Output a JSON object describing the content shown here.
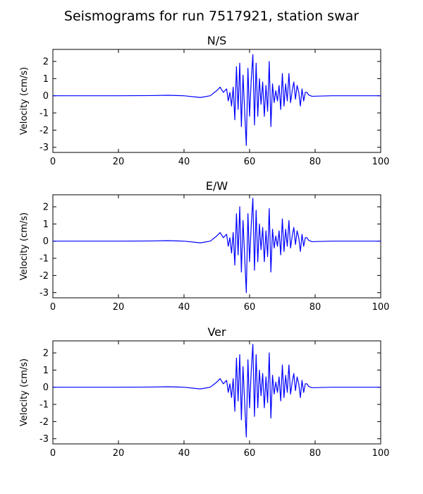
{
  "chart_data": {
    "type": "line",
    "title": "Seismograms for run 7517921, station swar",
    "panels": [
      {
        "title": "N/S",
        "ylabel": "Velocity (cm/s)",
        "xlabel": "",
        "xlim": [
          0,
          100
        ],
        "ylim": [
          -3.3,
          2.7
        ],
        "xticks": [
          "0",
          "20",
          "40",
          "60",
          "80",
          "100"
        ],
        "yticks": [
          "2",
          "1",
          "0",
          "-1",
          "-2",
          "-3"
        ],
        "x": [
          0,
          10,
          20,
          30,
          35,
          40,
          45,
          48,
          50,
          51,
          52,
          53,
          53.5,
          54,
          54.5,
          55,
          55.5,
          56,
          56.5,
          57,
          57.5,
          58,
          58.5,
          59,
          59.5,
          60,
          60.5,
          61,
          61.5,
          62,
          62.5,
          63,
          63.5,
          64,
          64.5,
          65,
          65.5,
          66,
          66.5,
          67,
          67.5,
          68,
          68.5,
          69,
          69.5,
          70,
          70.5,
          71,
          71.5,
          72,
          72.5,
          73,
          73.5,
          74,
          74.5,
          75,
          75.5,
          76,
          76.5,
          77,
          77.5,
          78,
          79,
          85,
          100
        ],
        "y": [
          0,
          0,
          0,
          0.01,
          0.03,
          0,
          -0.1,
          0,
          0.3,
          0.5,
          0.2,
          0.4,
          -0.3,
          0.2,
          -0.6,
          0.5,
          -1.4,
          1.7,
          -0.8,
          1.9,
          -1.8,
          1.2,
          -0.9,
          -2.9,
          1.6,
          -1.2,
          0.9,
          2.4,
          -1.7,
          1.9,
          -1.2,
          1.0,
          -0.5,
          0.8,
          -1.2,
          0.6,
          -0.9,
          2.0,
          -1.8,
          0.7,
          -0.4,
          0.3,
          -0.3,
          0.6,
          -0.8,
          1.3,
          -0.6,
          0.7,
          -0.3,
          1.3,
          -0.4,
          0.3,
          0.8,
          -0.2,
          0.6,
          0.2,
          -0.6,
          0.4,
          -0.3,
          0.2,
          0.2,
          0.05,
          -0.03,
          0,
          0
        ]
      },
      {
        "title": "E/W",
        "ylabel": "Velocity (cm/s)",
        "xlabel": "",
        "xlim": [
          0,
          100
        ],
        "ylim": [
          -3.3,
          2.7
        ],
        "xticks": [
          "0",
          "20",
          "40",
          "60",
          "80",
          "100"
        ],
        "yticks": [
          "2",
          "1",
          "0",
          "-1",
          "-2",
          "-3"
        ],
        "x": [
          0,
          10,
          20,
          30,
          35,
          40,
          45,
          48,
          50,
          51,
          52,
          53,
          53.5,
          54,
          54.5,
          55,
          55.5,
          56,
          56.5,
          57,
          57.5,
          58,
          58.5,
          59,
          59.5,
          60,
          60.5,
          61,
          61.5,
          62,
          62.5,
          63,
          63.5,
          64,
          64.5,
          65,
          65.5,
          66,
          66.5,
          67,
          67.5,
          68,
          68.5,
          69,
          69.5,
          70,
          70.5,
          71,
          71.5,
          72,
          72.5,
          73,
          73.5,
          74,
          74.5,
          75,
          75.5,
          76,
          76.5,
          77,
          77.5,
          78,
          79,
          85,
          100
        ],
        "y": [
          0,
          0,
          0,
          0.01,
          0.03,
          0,
          -0.1,
          0,
          0.3,
          0.5,
          0.2,
          0.4,
          -0.3,
          0.2,
          -0.7,
          0.5,
          -1.4,
          1.6,
          -0.8,
          2.0,
          -1.8,
          1.2,
          -0.9,
          -3.0,
          1.6,
          -1.2,
          0.9,
          2.5,
          -1.7,
          1.8,
          -1.2,
          1.0,
          -0.5,
          0.8,
          -1.2,
          0.6,
          -0.9,
          1.9,
          -1.8,
          0.7,
          -0.4,
          0.3,
          -0.3,
          0.6,
          -0.8,
          1.3,
          -0.6,
          0.7,
          -0.3,
          1.2,
          -0.4,
          0.3,
          0.8,
          -0.2,
          0.6,
          0.2,
          -0.6,
          0.4,
          -0.3,
          0.2,
          0.2,
          0.05,
          -0.03,
          0,
          0
        ]
      },
      {
        "title": "Ver",
        "ylabel": "Velocity (cm/s)",
        "xlabel": "",
        "xlim": [
          0,
          100
        ],
        "ylim": [
          -3.3,
          2.7
        ],
        "xticks": [
          "0",
          "20",
          "40",
          "60",
          "80",
          "100"
        ],
        "yticks": [
          "2",
          "1",
          "0",
          "-1",
          "-2",
          "-3"
        ],
        "x": [
          0,
          10,
          20,
          30,
          35,
          40,
          45,
          48,
          50,
          51,
          52,
          53,
          53.5,
          54,
          54.5,
          55,
          55.5,
          56,
          56.5,
          57,
          57.5,
          58,
          58.5,
          59,
          59.5,
          60,
          60.5,
          61,
          61.5,
          62,
          62.5,
          63,
          63.5,
          64,
          64.5,
          65,
          65.5,
          66,
          66.5,
          67,
          67.5,
          68,
          68.5,
          69,
          69.5,
          70,
          70.5,
          71,
          71.5,
          72,
          72.5,
          73,
          73.5,
          74,
          74.5,
          75,
          75.5,
          76,
          76.5,
          77,
          77.5,
          78,
          79,
          85,
          100
        ],
        "y": [
          0,
          0,
          0,
          0.01,
          0.03,
          0,
          -0.1,
          0,
          0.3,
          0.5,
          0.2,
          0.4,
          -0.3,
          0.2,
          -0.6,
          0.5,
          -1.4,
          1.7,
          -0.8,
          1.9,
          -1.9,
          1.2,
          -0.9,
          -2.9,
          1.6,
          -1.2,
          0.9,
          2.5,
          -1.7,
          1.9,
          -1.2,
          1.0,
          -0.5,
          0.8,
          -1.2,
          0.6,
          -0.9,
          2.0,
          -1.8,
          0.7,
          -0.4,
          0.3,
          -0.3,
          0.6,
          -0.8,
          1.3,
          -0.6,
          0.7,
          -0.3,
          1.3,
          -0.4,
          0.3,
          0.8,
          -0.2,
          0.6,
          0.2,
          -0.6,
          0.4,
          -0.3,
          0.2,
          0.2,
          0.05,
          -0.03,
          0,
          0
        ]
      }
    ],
    "line_color": "#0000ff",
    "grid": false,
    "legend": "none"
  }
}
